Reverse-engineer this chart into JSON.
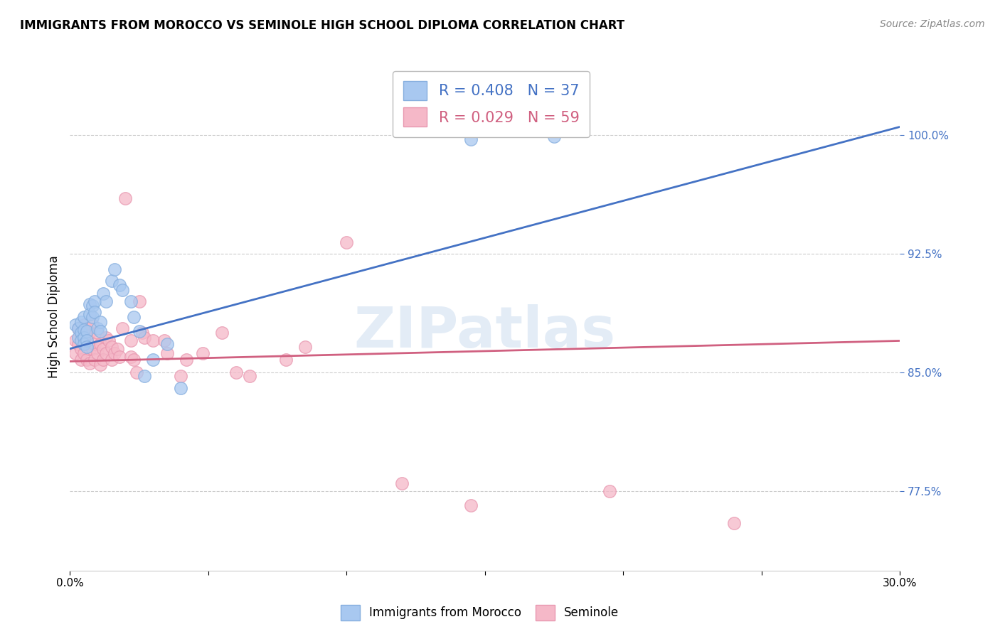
{
  "title": "IMMIGRANTS FROM MOROCCO VS SEMINOLE HIGH SCHOOL DIPLOMA CORRELATION CHART",
  "source": "Source: ZipAtlas.com",
  "ylabel": "High School Diploma",
  "ytick_labels": [
    "77.5%",
    "85.0%",
    "92.5%",
    "100.0%"
  ],
  "ytick_values": [
    0.775,
    0.85,
    0.925,
    1.0
  ],
  "xlim": [
    0.0,
    0.3
  ],
  "ylim": [
    0.725,
    1.045
  ],
  "x_tick_positions": [
    0.0,
    0.05,
    0.1,
    0.15,
    0.2,
    0.25,
    0.3
  ],
  "x_tick_labels": [
    "0.0%",
    "",
    "",
    "",
    "",
    "",
    "30.0%"
  ],
  "legend_title_blue": "Immigrants from Morocco",
  "legend_title_pink": "Seminole",
  "blue_scatter": [
    [
      0.002,
      0.88
    ],
    [
      0.003,
      0.878
    ],
    [
      0.003,
      0.872
    ],
    [
      0.004,
      0.882
    ],
    [
      0.004,
      0.875
    ],
    [
      0.004,
      0.87
    ],
    [
      0.005,
      0.885
    ],
    [
      0.005,
      0.877
    ],
    [
      0.005,
      0.872
    ],
    [
      0.005,
      0.868
    ],
    [
      0.006,
      0.876
    ],
    [
      0.006,
      0.87
    ],
    [
      0.006,
      0.866
    ],
    [
      0.007,
      0.893
    ],
    [
      0.007,
      0.887
    ],
    [
      0.008,
      0.892
    ],
    [
      0.008,
      0.885
    ],
    [
      0.009,
      0.895
    ],
    [
      0.009,
      0.888
    ],
    [
      0.01,
      0.878
    ],
    [
      0.011,
      0.882
    ],
    [
      0.011,
      0.876
    ],
    [
      0.012,
      0.9
    ],
    [
      0.013,
      0.895
    ],
    [
      0.015,
      0.908
    ],
    [
      0.016,
      0.915
    ],
    [
      0.018,
      0.905
    ],
    [
      0.019,
      0.902
    ],
    [
      0.022,
      0.895
    ],
    [
      0.023,
      0.885
    ],
    [
      0.025,
      0.876
    ],
    [
      0.027,
      0.848
    ],
    [
      0.03,
      0.858
    ],
    [
      0.035,
      0.868
    ],
    [
      0.04,
      0.84
    ],
    [
      0.145,
      0.997
    ],
    [
      0.175,
      0.999
    ]
  ],
  "pink_scatter": [
    [
      0.002,
      0.87
    ],
    [
      0.002,
      0.862
    ],
    [
      0.003,
      0.878
    ],
    [
      0.003,
      0.868
    ],
    [
      0.004,
      0.875
    ],
    [
      0.004,
      0.865
    ],
    [
      0.004,
      0.858
    ],
    [
      0.005,
      0.88
    ],
    [
      0.005,
      0.872
    ],
    [
      0.005,
      0.862
    ],
    [
      0.006,
      0.878
    ],
    [
      0.006,
      0.868
    ],
    [
      0.006,
      0.858
    ],
    [
      0.007,
      0.875
    ],
    [
      0.007,
      0.865
    ],
    [
      0.007,
      0.856
    ],
    [
      0.008,
      0.88
    ],
    [
      0.008,
      0.865
    ],
    [
      0.009,
      0.868
    ],
    [
      0.009,
      0.858
    ],
    [
      0.01,
      0.875
    ],
    [
      0.01,
      0.862
    ],
    [
      0.011,
      0.868
    ],
    [
      0.011,
      0.855
    ],
    [
      0.012,
      0.865
    ],
    [
      0.012,
      0.858
    ],
    [
      0.013,
      0.872
    ],
    [
      0.013,
      0.862
    ],
    [
      0.014,
      0.87
    ],
    [
      0.015,
      0.866
    ],
    [
      0.015,
      0.858
    ],
    [
      0.016,
      0.862
    ],
    [
      0.017,
      0.865
    ],
    [
      0.018,
      0.86
    ],
    [
      0.019,
      0.878
    ],
    [
      0.02,
      0.96
    ],
    [
      0.022,
      0.87
    ],
    [
      0.022,
      0.86
    ],
    [
      0.023,
      0.858
    ],
    [
      0.024,
      0.85
    ],
    [
      0.025,
      0.895
    ],
    [
      0.026,
      0.875
    ],
    [
      0.027,
      0.872
    ],
    [
      0.03,
      0.87
    ],
    [
      0.034,
      0.87
    ],
    [
      0.035,
      0.862
    ],
    [
      0.04,
      0.848
    ],
    [
      0.042,
      0.858
    ],
    [
      0.048,
      0.862
    ],
    [
      0.055,
      0.875
    ],
    [
      0.06,
      0.85
    ],
    [
      0.065,
      0.848
    ],
    [
      0.078,
      0.858
    ],
    [
      0.085,
      0.866
    ],
    [
      0.1,
      0.932
    ],
    [
      0.12,
      0.78
    ],
    [
      0.145,
      0.766
    ],
    [
      0.195,
      0.775
    ],
    [
      0.24,
      0.755
    ]
  ],
  "blue_line": [
    [
      0.0,
      0.865
    ],
    [
      0.3,
      1.005
    ]
  ],
  "pink_line": [
    [
      0.0,
      0.857
    ],
    [
      0.3,
      0.87
    ]
  ],
  "watermark": "ZIPatlas",
  "blue_color": "#a8c8f0",
  "blue_edge_color": "#85aede",
  "blue_line_color": "#4472c4",
  "pink_color": "#f5b8c8",
  "pink_edge_color": "#e898b0",
  "pink_line_color": "#d06080",
  "background_color": "#ffffff",
  "grid_color": "#cccccc",
  "title_fontsize": 12,
  "axis_fontsize": 11,
  "ytick_fontsize": 11
}
